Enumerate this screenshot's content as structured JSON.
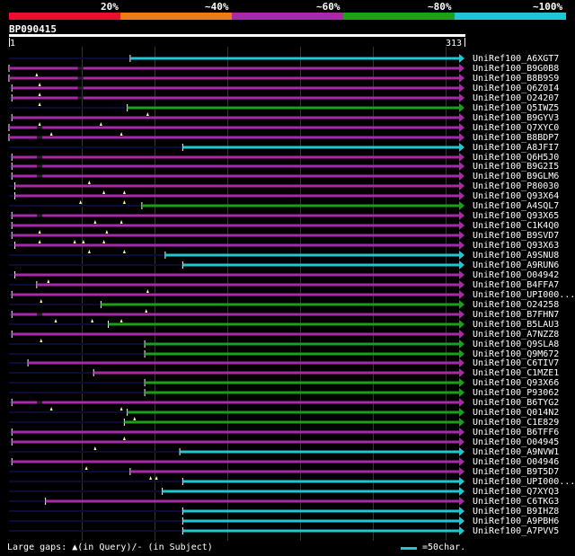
{
  "scale": {
    "labels": [
      "20%",
      "~40%",
      "~60%",
      "~80%",
      "~100%"
    ],
    "colors": [
      "#e8102a",
      "#ee7a12",
      "#a82aa8",
      "#1aa01a",
      "#1ec8d2"
    ]
  },
  "query": {
    "title": "BP090415",
    "start": "1",
    "end": "313"
  },
  "colors": {
    "purple": "#a82aa8",
    "green": "#1aa01a",
    "cyan": "#1ec8d2",
    "faint": "#0b0b35",
    "marker": "#ffff99"
  },
  "hits": [
    {
      "name": "UniRef100_A6XGT7",
      "color": "cyan",
      "start": 84,
      "end": 313,
      "markers": [],
      "gaps": []
    },
    {
      "name": "UniRef100_B9G0B8",
      "color": "purple",
      "start": 1,
      "end": 313,
      "markers": [
        20
      ],
      "gaps": [
        50
      ]
    },
    {
      "name": "UniRef100_B8B9S9",
      "color": "purple",
      "start": 1,
      "end": 313,
      "markers": [
        22
      ],
      "gaps": [
        50
      ]
    },
    {
      "name": "UniRef100_Q6Z0I4",
      "color": "purple",
      "start": 3,
      "end": 313,
      "markers": [
        22
      ],
      "gaps": [
        50
      ]
    },
    {
      "name": "UniRef100_O24207",
      "color": "purple",
      "start": 3,
      "end": 313,
      "markers": [
        22
      ],
      "gaps": [
        50
      ]
    },
    {
      "name": "UniRef100_Q5IWZ5",
      "color": "green",
      "start": 82,
      "end": 313,
      "markers": [
        96
      ],
      "gaps": []
    },
    {
      "name": "UniRef100_B9GYV3",
      "color": "purple",
      "start": 3,
      "end": 313,
      "markers": [
        22,
        64
      ],
      "gaps": []
    },
    {
      "name": "UniRef100_Q7XYC0",
      "color": "purple",
      "start": 1,
      "end": 313,
      "markers": [
        30,
        78
      ],
      "gaps": [
        22
      ]
    },
    {
      "name": "UniRef100_B8BDP7",
      "color": "purple",
      "start": 1,
      "end": 313,
      "markers": [],
      "gaps": [
        22
      ]
    },
    {
      "name": "UniRef100_A8JFI7",
      "color": "cyan",
      "start": 120,
      "end": 313,
      "markers": [],
      "gaps": []
    },
    {
      "name": "UniRef100_Q6H5J0",
      "color": "purple",
      "start": 3,
      "end": 313,
      "markers": [],
      "gaps": [
        22
      ]
    },
    {
      "name": "UniRef100_B9G2I5",
      "color": "purple",
      "start": 3,
      "end": 313,
      "markers": [],
      "gaps": [
        22
      ]
    },
    {
      "name": "UniRef100_B9GLM6",
      "color": "purple",
      "start": 3,
      "end": 313,
      "markers": [
        56
      ],
      "gaps": [
        22
      ]
    },
    {
      "name": "UniRef100_P80030",
      "color": "purple",
      "start": 5,
      "end": 313,
      "markers": [
        66,
        80
      ],
      "gaps": []
    },
    {
      "name": "UniRef100_Q93X64",
      "color": "purple",
      "start": 5,
      "end": 313,
      "markers": [
        50,
        80
      ],
      "gaps": []
    },
    {
      "name": "UniRef100_A4SQL7",
      "color": "green",
      "start": 92,
      "end": 313,
      "markers": [],
      "gaps": []
    },
    {
      "name": "UniRef100_Q93X65",
      "color": "purple",
      "start": 3,
      "end": 313,
      "markers": [
        60,
        78
      ],
      "gaps": [
        22
      ]
    },
    {
      "name": "UniRef100_C1K4Q0",
      "color": "purple",
      "start": 3,
      "end": 313,
      "markers": [
        22,
        68
      ],
      "gaps": []
    },
    {
      "name": "UniRef100_B9SVD7",
      "color": "purple",
      "start": 3,
      "end": 313,
      "markers": [
        22,
        46,
        52,
        66
      ],
      "gaps": []
    },
    {
      "name": "UniRef100_Q93X63",
      "color": "purple",
      "start": 5,
      "end": 313,
      "markers": [
        56,
        80
      ],
      "gaps": []
    },
    {
      "name": "UniRef100_A9SNU8",
      "color": "cyan",
      "start": 108,
      "end": 313,
      "markers": [],
      "gaps": []
    },
    {
      "name": "UniRef100_A9RUN6",
      "color": "cyan",
      "start": 120,
      "end": 313,
      "markers": [],
      "gaps": []
    },
    {
      "name": "UniRef100_O04942",
      "color": "purple",
      "start": 5,
      "end": 313,
      "markers": [
        28
      ],
      "gaps": []
    },
    {
      "name": "UniRef100_B4FFA7",
      "color": "purple",
      "start": 20,
      "end": 313,
      "markers": [
        96
      ],
      "gaps": []
    },
    {
      "name": "UniRef100_UPI000...",
      "color": "purple",
      "start": 3,
      "end": 313,
      "markers": [
        23
      ],
      "gaps": []
    },
    {
      "name": "UniRef100_O24258",
      "color": "green",
      "start": 64,
      "end": 313,
      "markers": [
        95
      ],
      "gaps": []
    },
    {
      "name": "UniRef100_B7FHN7",
      "color": "purple",
      "start": 3,
      "end": 313,
      "markers": [
        33,
        58,
        78
      ],
      "gaps": [
        22
      ]
    },
    {
      "name": "UniRef100_B5LAU3",
      "color": "green",
      "start": 69,
      "end": 313,
      "markers": [],
      "gaps": []
    },
    {
      "name": "UniRef100_A7NZZ8",
      "color": "purple",
      "start": 3,
      "end": 313,
      "markers": [
        23
      ],
      "gaps": []
    },
    {
      "name": "UniRef100_Q9SLA8",
      "color": "green",
      "start": 94,
      "end": 313,
      "markers": [],
      "gaps": []
    },
    {
      "name": "UniRef100_Q9M672",
      "color": "green",
      "start": 94,
      "end": 313,
      "markers": [],
      "gaps": []
    },
    {
      "name": "UniRef100_C6TIV7",
      "color": "purple",
      "start": 14,
      "end": 313,
      "markers": [],
      "gaps": []
    },
    {
      "name": "UniRef100_C1MZE1",
      "color": "purple",
      "start": 59,
      "end": 313,
      "markers": [],
      "gaps": []
    },
    {
      "name": "UniRef100_Q93X66",
      "color": "green",
      "start": 94,
      "end": 313,
      "markers": [],
      "gaps": []
    },
    {
      "name": "UniRef100_P93062",
      "color": "green",
      "start": 94,
      "end": 313,
      "markers": [],
      "gaps": []
    },
    {
      "name": "UniRef100_B6TYG2",
      "color": "purple",
      "start": 3,
      "end": 313,
      "markers": [
        30,
        78
      ],
      "gaps": [
        22
      ]
    },
    {
      "name": "UniRef100_Q014N2",
      "color": "green",
      "start": 82,
      "end": 313,
      "markers": [
        87
      ],
      "gaps": []
    },
    {
      "name": "UniRef100_C1E829",
      "color": "green",
      "start": 80,
      "end": 313,
      "markers": [],
      "gaps": []
    },
    {
      "name": "UniRef100_B6TFF6",
      "color": "purple",
      "start": 3,
      "end": 313,
      "markers": [
        80
      ],
      "gaps": []
    },
    {
      "name": "UniRef100_O04945",
      "color": "purple",
      "start": 3,
      "end": 313,
      "markers": [
        60
      ],
      "gaps": []
    },
    {
      "name": "UniRef100_A9NVW1",
      "color": "cyan",
      "start": 118,
      "end": 313,
      "markers": [],
      "gaps": []
    },
    {
      "name": "UniRef100_O04946",
      "color": "purple",
      "start": 3,
      "end": 313,
      "markers": [
        54
      ],
      "gaps": []
    },
    {
      "name": "UniRef100_B9T5D7",
      "color": "purple",
      "start": 84,
      "end": 313,
      "markers": [
        98,
        102
      ],
      "gaps": []
    },
    {
      "name": "UniRef100_UPI000...",
      "color": "cyan",
      "start": 120,
      "end": 313,
      "markers": [],
      "gaps": []
    },
    {
      "name": "UniRef100_Q7XYQ3",
      "color": "cyan",
      "start": 106,
      "end": 313,
      "markers": [],
      "gaps": []
    },
    {
      "name": "UniRef100_C6TKG3",
      "color": "purple",
      "start": 26,
      "end": 313,
      "markers": [],
      "gaps": []
    },
    {
      "name": "UniRef100_B9IHZ8",
      "color": "cyan",
      "start": 120,
      "end": 313,
      "markers": [],
      "gaps": []
    },
    {
      "name": "UniRef100_A9PBH6",
      "color": "cyan",
      "start": 120,
      "end": 313,
      "markers": [],
      "gaps": []
    },
    {
      "name": "UniRef100_A7PVV5",
      "color": "cyan",
      "start": 120,
      "end": 313,
      "markers": [],
      "gaps": []
    }
  ],
  "legend": {
    "gaps_text": "Large gaps: ▲(in Query)/- (in Subject)",
    "scale_text": "=50char."
  }
}
